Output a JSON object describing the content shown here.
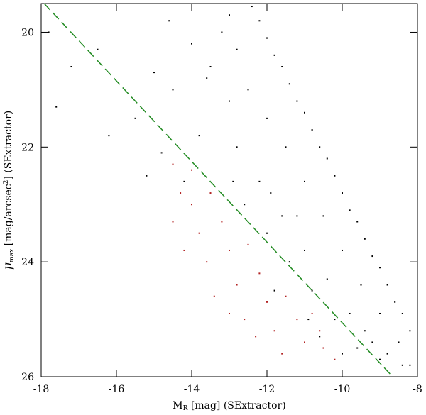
{
  "chart_data": {
    "type": "scatter",
    "xlabel": {
      "main": "M",
      "sub": "R",
      "rest": " [mag] (SExtractor)"
    },
    "ylabel": {
      "main": "μ",
      "sub": "max",
      "rest": " [mag/arcsec",
      "sup": "2",
      "end": "] (SExtractor)"
    },
    "xlim": [
      -18,
      -8
    ],
    "ylim": [
      26,
      19.5
    ],
    "xticks": [
      -18,
      -16,
      -14,
      -12,
      -10,
      -8
    ],
    "yticks": [
      20,
      22,
      24,
      26
    ],
    "reference_line": {
      "x": [
        -17.92,
        -8.66
      ],
      "y": [
        19.5,
        26
      ],
      "color": "#228b22"
    },
    "series": [
      {
        "color": "#000000",
        "x": [
          -12.4,
          -12.2,
          -12.0,
          -11.8,
          -11.6,
          -11.4,
          -11.2,
          -11.0,
          -10.8,
          -10.6,
          -10.4,
          -10.2,
          -10.0,
          -9.8,
          -9.6,
          -9.4,
          -9.2,
          -9.0,
          -8.8,
          -8.6,
          -8.4,
          -8.2,
          -12.5,
          -12.0,
          -11.5,
          -11.0,
          -10.5,
          -10.0,
          -9.5,
          -9.0,
          -8.5,
          -12.8,
          -12.2,
          -11.6,
          -11.0,
          -10.4,
          -9.8,
          -9.2,
          -12.0,
          -11.4,
          -10.8,
          -10.2,
          -9.6,
          -9.0,
          -8.4,
          -13.0,
          -13.5,
          -14.0,
          -13.2,
          -12.8,
          -14.5,
          -13.8,
          -12.6,
          -11.8,
          -10.6,
          -10.0,
          -17.8,
          -17.2,
          -17.6,
          -16.5,
          -15.0,
          -15.5,
          -16.2,
          -14.8,
          -15.2,
          -14.2,
          -13.6,
          -14.6,
          -13.0,
          -12.9,
          -11.9,
          -11.2,
          -10.9,
          -9.4,
          -8.8,
          -8.2
        ],
        "values": [
          19.55,
          19.8,
          20.1,
          20.4,
          20.6,
          20.9,
          21.2,
          21.4,
          21.7,
          22.0,
          22.2,
          22.5,
          22.8,
          23.1,
          23.3,
          23.6,
          23.9,
          24.1,
          24.4,
          24.7,
          24.9,
          25.2,
          21.0,
          21.5,
          22.0,
          22.6,
          23.2,
          23.8,
          24.4,
          24.9,
          25.4,
          22.0,
          22.6,
          23.2,
          23.8,
          24.3,
          24.9,
          25.4,
          23.5,
          24.0,
          24.5,
          25.0,
          25.5,
          25.7,
          25.8,
          21.2,
          20.6,
          20.2,
          20.0,
          20.3,
          21.0,
          21.8,
          23.0,
          24.5,
          25.3,
          25.6,
          20.0,
          20.6,
          21.3,
          20.3,
          20.7,
          21.5,
          21.8,
          22.1,
          22.5,
          22.6,
          20.8,
          19.8,
          19.7,
          22.6,
          22.8,
          23.2,
          25.0,
          25.2,
          25.6,
          25.8
        ]
      },
      {
        "color": "#b22222",
        "x": [
          -14.5,
          -14.3,
          -14.5,
          -14.0,
          -14.2,
          -13.8,
          -13.6,
          -13.5,
          -13.2,
          -13.0,
          -12.8,
          -13.4,
          -12.5,
          -12.2,
          -12.0,
          -12.6,
          -11.8,
          -11.5,
          -11.2,
          -11.0,
          -10.8,
          -10.5,
          -10.2,
          -10.6,
          -14.0,
          -13.0,
          -12.3,
          -11.6
        ],
        "values": [
          22.3,
          22.8,
          23.3,
          23.0,
          23.8,
          23.5,
          24.0,
          22.8,
          23.3,
          23.8,
          24.4,
          24.6,
          23.7,
          24.2,
          24.7,
          25.0,
          25.2,
          24.6,
          25.0,
          25.4,
          24.9,
          25.5,
          25.7,
          25.2,
          22.4,
          24.9,
          25.3,
          25.6
        ]
      }
    ]
  }
}
